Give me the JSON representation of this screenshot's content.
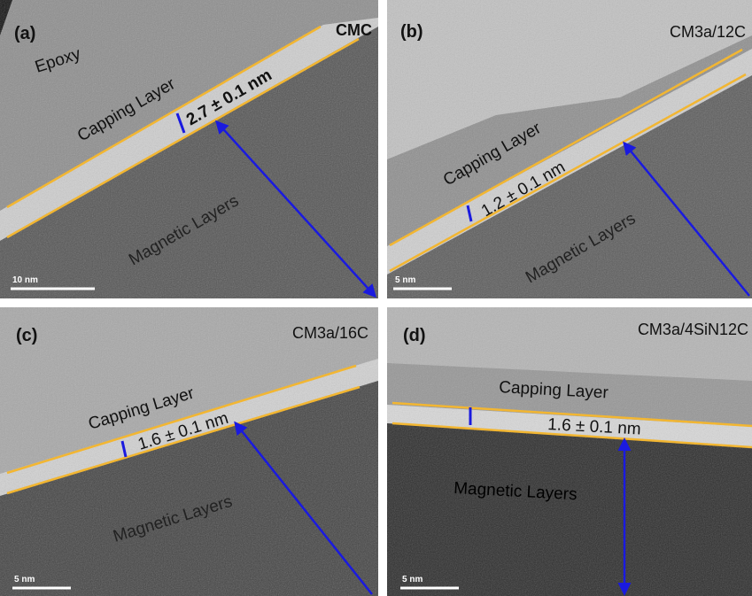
{
  "panels": [
    {
      "label": "(a)",
      "sample": "CMC",
      "epoxy": "Epoxy",
      "capping": "Capping Layer",
      "thickness": "2.7 ± 0.1 nm",
      "magnetic": "Magnetic Layers",
      "scale_bar": "10 nm"
    },
    {
      "label": "(b)",
      "sample": "CM3a/12C",
      "capping": "Capping Layer",
      "thickness": "1.2 ± 0.1 nm",
      "magnetic": "Magnetic Layers",
      "scale_bar": "5 nm"
    },
    {
      "label": "(c)",
      "sample": "CM3a/16C",
      "capping": "Capping Layer",
      "thickness": "1.6 ± 0.1 nm",
      "magnetic": "Magnetic Layers",
      "scale_bar": "5 nm"
    },
    {
      "label": "(d)",
      "sample": "CM3a/4SiN12C",
      "capping": "Capping Layer",
      "thickness": "1.6 ± 0.1 nm",
      "magnetic": "Magnetic Layers",
      "scale_bar": "5 nm"
    }
  ]
}
